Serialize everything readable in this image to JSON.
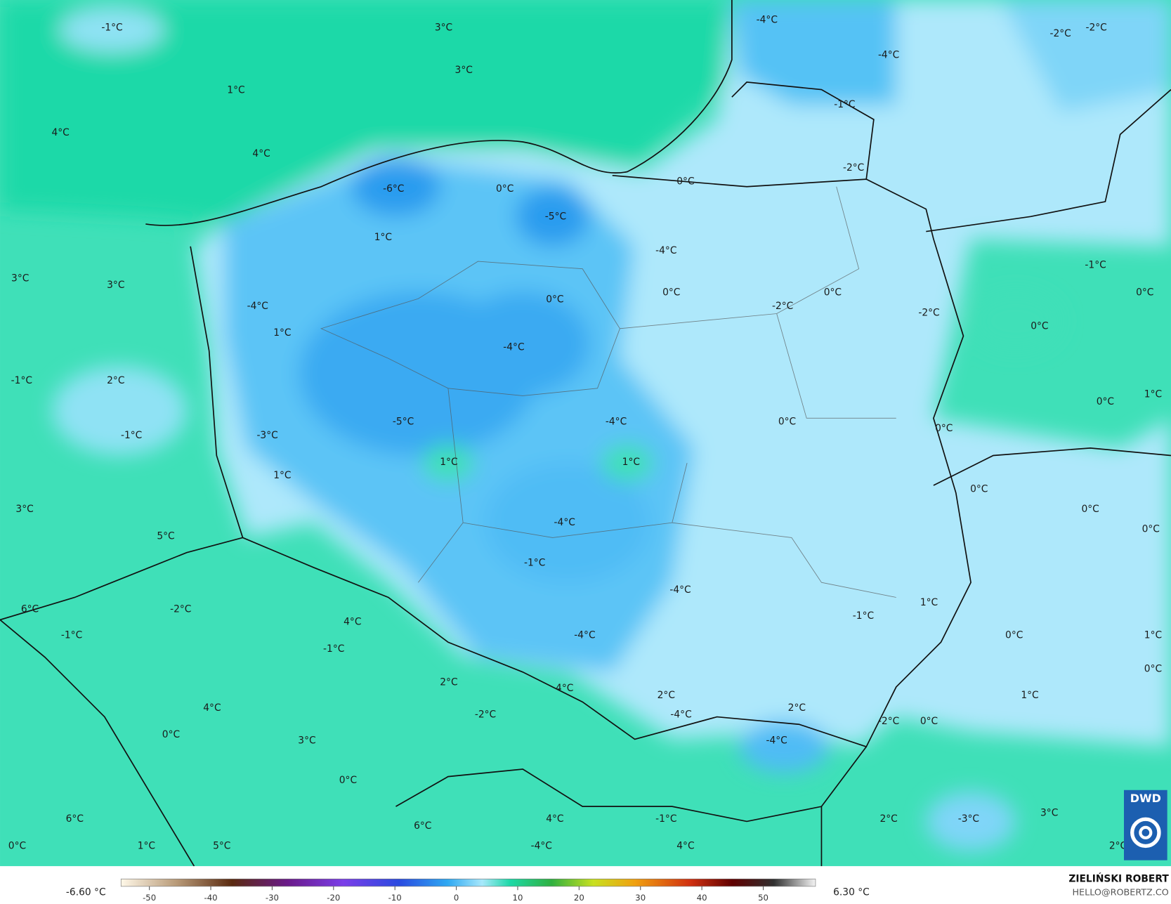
{
  "map": {
    "labels": [
      "-1°C",
      "3°C",
      "3°C",
      "-4°C",
      "-2°C",
      "-2°C",
      "-4°C",
      "1°C",
      "4°C",
      "4°C",
      "-1°C",
      "-2°C",
      "0°C",
      "-6°C",
      "0°C",
      "-5°C",
      "1°C",
      "-4°C",
      "-1°C",
      "3°C",
      "3°C",
      "0°C",
      "0°C",
      "0°C",
      "-4°C",
      "-2°C",
      "-2°C",
      "0°C",
      "0°C",
      "1°C",
      "-4°C",
      "-1°C",
      "2°C",
      "0°C",
      "1°C",
      "-5°C",
      "-4°C",
      "0°C",
      "0°C",
      "-3°C",
      "-1°C",
      "1°C",
      "1°C",
      "1°C",
      "0°C",
      "3°C",
      "0°C",
      "5°C",
      "-4°C",
      "0°C",
      "-1°C",
      "-4°C",
      "1°C",
      "6°C",
      "-2°C",
      "-1°C",
      "4°C",
      "-1°C",
      "-4°C",
      "0°C",
      "1°C",
      "-1°C",
      "0°C",
      "2°C",
      "4°C",
      "2°C",
      "1°C",
      "4°C",
      "2°C",
      "-2°C",
      "-4°C",
      "-2°C",
      "0°C",
      "0°C",
      "3°C",
      "-4°C",
      "0°C",
      "6°C",
      "4°C",
      "-1°C",
      "3°C",
      "2°C",
      "-3°C",
      "6°C",
      "0°C",
      "1°C",
      "5°C",
      "-4°C",
      "4°C",
      "2°C"
    ]
  },
  "colorbar": {
    "min_label": "-6.60 °C",
    "max_label": "6.30 °C",
    "ticks": [
      -50,
      -40,
      -30,
      -20,
      -10,
      0,
      10,
      20,
      30,
      40,
      50
    ]
  },
  "credit": {
    "name": "ZIELIŃSKI ROBERT",
    "email": "HELLO@ROBERTZ.CO",
    "logo": "DWD"
  }
}
